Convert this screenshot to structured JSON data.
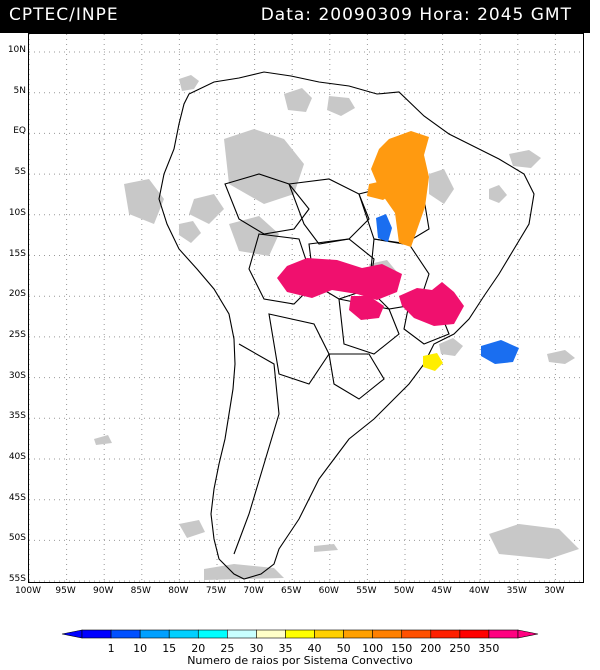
{
  "header": {
    "source": "CPTEC/INPE",
    "datetime": "Data: 20090309 Hora: 2045 GMT",
    "bg_color": "#000000",
    "text_color": "#ffffff"
  },
  "map": {
    "lat_labels": [
      "10N",
      "5N",
      "EQ",
      "5S",
      "10S",
      "15S",
      "20S",
      "25S",
      "30S",
      "35S",
      "40S",
      "45S",
      "50S",
      "55S"
    ],
    "lon_labels": [
      "100W",
      "95W",
      "90W",
      "85W",
      "80W",
      "75W",
      "70W",
      "65W",
      "60W",
      "55W",
      "50W",
      "45W",
      "40W",
      "35W",
      "30W"
    ],
    "land_color": "#ffffff",
    "cloud_color": "#c8c8c8",
    "grid_style": "dotted"
  },
  "legend": {
    "ticks": [
      "1",
      "10",
      "15",
      "20",
      "25",
      "30",
      "35",
      "40",
      "50",
      "100",
      "150",
      "200",
      "250",
      "350"
    ],
    "colors": [
      "#0000ff",
      "#0050ff",
      "#00a0ff",
      "#00d0ff",
      "#00ffff",
      "#c8ffff",
      "#ffffc8",
      "#ffff00",
      "#ffd000",
      "#ffa000",
      "#ff8000",
      "#ff5000",
      "#ff2000",
      "#ff0000",
      "#ff0080"
    ],
    "caption": "Numero de raios por Sistema Convectivo"
  },
  "systems": [
    {
      "name": "pink-system-west",
      "color": "#f0106e"
    },
    {
      "name": "pink-system-southeast",
      "color": "#f0106e"
    },
    {
      "name": "orange-system-north",
      "color": "#ff9a10"
    },
    {
      "name": "blue-system-atlantic",
      "color": "#1a6ef0"
    },
    {
      "name": "yellow-system-south",
      "color": "#ffee00"
    }
  ]
}
